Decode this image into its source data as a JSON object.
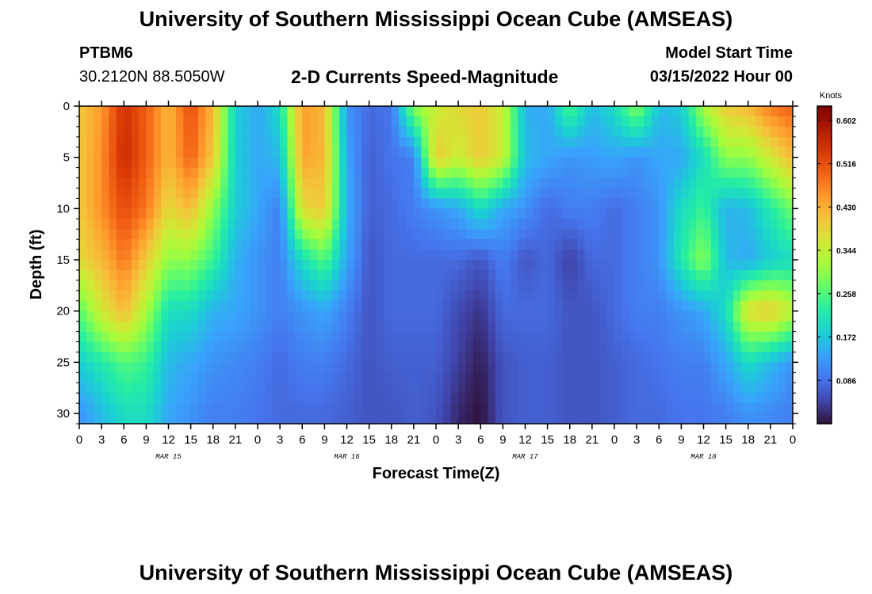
{
  "page": {
    "title": "University of Southern Mississippi Ocean Cube (AMSEAS)",
    "footer_title": "University of Southern Mississippi Ocean Cube (AMSEAS)",
    "station_name": "PTBM6",
    "station_coords": "30.2120N  88.5050W",
    "variable_title": "2-D Currents Speed-Magnitude",
    "model_start_label": "Model Start Time",
    "model_start_value": "03/15/2022 Hour 00"
  },
  "chart_data": {
    "type": "heatmap",
    "title": "2-D Currents Speed-Magnitude",
    "xlabel": "Forecast Time(Z)",
    "ylabel": "Depth (ft)",
    "x_range_hours": [
      0,
      96
    ],
    "x_tick_labels": [
      "0",
      "3",
      "6",
      "9",
      "12",
      "15",
      "18",
      "21",
      "0",
      "3",
      "6",
      "9",
      "12",
      "15",
      "18",
      "21",
      "0",
      "3",
      "6",
      "9",
      "12",
      "15",
      "18",
      "21",
      "0",
      "3",
      "6",
      "9",
      "12",
      "15",
      "18",
      "21",
      "0"
    ],
    "date_labels": [
      {
        "label": "MAR 15",
        "hour": 12
      },
      {
        "label": "MAR 16",
        "hour": 36
      },
      {
        "label": "MAR 17",
        "hour": 60
      },
      {
        "label": "MAR 18",
        "hour": 84
      }
    ],
    "y_range_ft": [
      0,
      31
    ],
    "y_ticks": [
      0,
      5,
      10,
      15,
      20,
      25,
      30
    ],
    "y_tick_labels": [
      "0",
      "5",
      "10",
      "15",
      "20",
      "25",
      "30"
    ],
    "colorbar": {
      "unit": "Knots",
      "min": 0.0,
      "max": 0.63,
      "tick_values": [
        0.602,
        0.516,
        0.43,
        0.344,
        0.258,
        0.172,
        0.086
      ],
      "tick_labels": [
        "0.602",
        "0.516",
        "0.430",
        "0.344",
        "0.258",
        "0.172",
        "0.086"
      ],
      "colors": [
        "#30123b",
        "#4145ab",
        "#4675ed",
        "#39a2fc",
        "#1bcfd4",
        "#24eca6",
        "#61fc6c",
        "#a4fc3b",
        "#d1e834",
        "#f3c63a",
        "#fe9b2d",
        "#f36315",
        "#d93806",
        "#b11901",
        "#7a0402"
      ]
    },
    "speed_field_knots": {
      "description": "Estimated current speed (knots) at each forecast hour and depth, read from the color scale",
      "hours": [
        0,
        3,
        6,
        9,
        12,
        15,
        18,
        21,
        24,
        27,
        30,
        33,
        36,
        39,
        42,
        45,
        48,
        51,
        54,
        57,
        60,
        63,
        66,
        69,
        72,
        75,
        78,
        81,
        84,
        87,
        90,
        93,
        96
      ],
      "depths_ft": [
        0,
        5,
        10,
        15,
        20,
        25,
        30
      ],
      "values": [
        [
          0.4,
          0.45,
          0.55,
          0.5,
          0.42,
          0.52,
          0.42,
          0.18,
          0.14,
          0.2,
          0.45,
          0.42,
          0.12,
          0.08,
          0.09,
          0.3,
          0.35,
          0.38,
          0.4,
          0.35,
          0.15,
          0.14,
          0.26,
          0.16,
          0.2,
          0.3,
          0.16,
          0.18,
          0.32,
          0.4,
          0.42,
          0.48,
          0.5
        ],
        [
          0.4,
          0.46,
          0.56,
          0.5,
          0.42,
          0.5,
          0.4,
          0.18,
          0.14,
          0.16,
          0.44,
          0.42,
          0.14,
          0.07,
          0.09,
          0.1,
          0.4,
          0.35,
          0.4,
          0.35,
          0.16,
          0.14,
          0.12,
          0.13,
          0.14,
          0.12,
          0.14,
          0.14,
          0.2,
          0.3,
          0.3,
          0.36,
          0.42
        ],
        [
          0.4,
          0.46,
          0.52,
          0.48,
          0.38,
          0.42,
          0.3,
          0.18,
          0.14,
          0.1,
          0.38,
          0.4,
          0.15,
          0.07,
          0.08,
          0.1,
          0.12,
          0.14,
          0.2,
          0.14,
          0.12,
          0.08,
          0.1,
          0.1,
          0.08,
          0.1,
          0.12,
          0.2,
          0.24,
          0.15,
          0.16,
          0.22,
          0.28
        ],
        [
          0.38,
          0.42,
          0.48,
          0.4,
          0.3,
          0.3,
          0.24,
          0.15,
          0.12,
          0.1,
          0.2,
          0.26,
          0.14,
          0.06,
          0.08,
          0.08,
          0.08,
          0.08,
          0.06,
          0.1,
          0.06,
          0.08,
          0.04,
          0.08,
          0.08,
          0.1,
          0.12,
          0.22,
          0.3,
          0.16,
          0.14,
          0.18,
          0.2
        ],
        [
          0.26,
          0.36,
          0.42,
          0.32,
          0.2,
          0.2,
          0.15,
          0.14,
          0.12,
          0.1,
          0.12,
          0.14,
          0.1,
          0.06,
          0.08,
          0.08,
          0.08,
          0.05,
          0.03,
          0.08,
          0.08,
          0.08,
          0.06,
          0.06,
          0.08,
          0.1,
          0.1,
          0.12,
          0.14,
          0.2,
          0.38,
          0.4,
          0.34
        ],
        [
          0.18,
          0.22,
          0.26,
          0.24,
          0.16,
          0.14,
          0.12,
          0.11,
          0.1,
          0.08,
          0.1,
          0.1,
          0.08,
          0.06,
          0.07,
          0.07,
          0.07,
          0.04,
          0.01,
          0.06,
          0.07,
          0.07,
          0.06,
          0.06,
          0.07,
          0.08,
          0.09,
          0.1,
          0.1,
          0.14,
          0.2,
          0.16,
          0.12
        ],
        [
          0.12,
          0.16,
          0.2,
          0.2,
          0.14,
          0.12,
          0.1,
          0.1,
          0.09,
          0.08,
          0.08,
          0.08,
          0.07,
          0.06,
          0.06,
          0.07,
          0.06,
          0.02,
          0.0,
          0.06,
          0.07,
          0.07,
          0.06,
          0.06,
          0.07,
          0.08,
          0.08,
          0.09,
          0.09,
          0.1,
          0.12,
          0.11,
          0.1
        ]
      ]
    }
  }
}
